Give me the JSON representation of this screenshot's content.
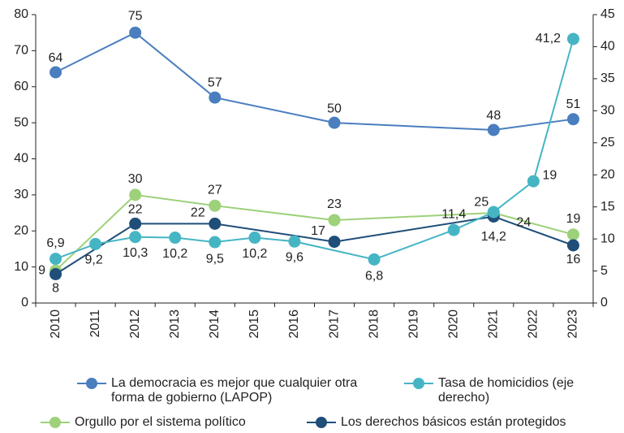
{
  "chart_data": {
    "type": "line",
    "xticks": [
      2010,
      2011,
      2012,
      2013,
      2014,
      2015,
      2016,
      2017,
      2018,
      2019,
      2020,
      2021,
      2022,
      2023
    ],
    "xlim": [
      2009.5,
      2023.5
    ],
    "ylim": [
      0,
      80
    ],
    "yticks": [
      0,
      10,
      20,
      30,
      40,
      50,
      60,
      70,
      80
    ],
    "y2lim": [
      0,
      45
    ],
    "y2ticks": [
      0,
      5,
      10,
      15,
      20,
      25,
      30,
      35,
      40,
      45
    ],
    "legend": "bottom",
    "series": [
      {
        "name": "La democracia es mejor que cualquier otra forma de gobierno (LAPOP)",
        "color": "#4a7ebf",
        "x": [
          2010,
          2012,
          2014,
          2017,
          2021,
          2023
        ],
        "values": [
          64,
          75,
          57,
          50,
          48,
          51
        ]
      },
      {
        "name": "Tasa de homicidios (eje derecho)",
        "color": "#45b5c4",
        "axis": "y2",
        "x": [
          2010,
          2011,
          2012,
          2013,
          2014,
          2015,
          2016,
          2018,
          2020,
          2021,
          2022,
          2023
        ],
        "values": [
          6.9,
          9.2,
          10.3,
          10.2,
          9.5,
          10.2,
          9.6,
          6.8,
          11.4,
          14.2,
          19,
          41.2
        ],
        "value_labels": [
          "6,9",
          "9,2",
          "10,3",
          "10,2",
          "9,5",
          "10,2",
          "9,6",
          "6,8",
          "11,4",
          "14,2",
          "19",
          "41,2"
        ]
      },
      {
        "name": "Orgullo por el sistema político",
        "color": "#9dd17a",
        "x": [
          2010,
          2012,
          2014,
          2017,
          2021,
          2023
        ],
        "values": [
          9,
          30,
          27,
          23,
          25,
          19
        ]
      },
      {
        "name": "Los derechos básicos están protegidos",
        "color": "#1f4e79",
        "x": [
          2010,
          2012,
          2014,
          2017,
          2021,
          2023
        ],
        "values": [
          8,
          22,
          22,
          17,
          24,
          16
        ]
      }
    ]
  }
}
